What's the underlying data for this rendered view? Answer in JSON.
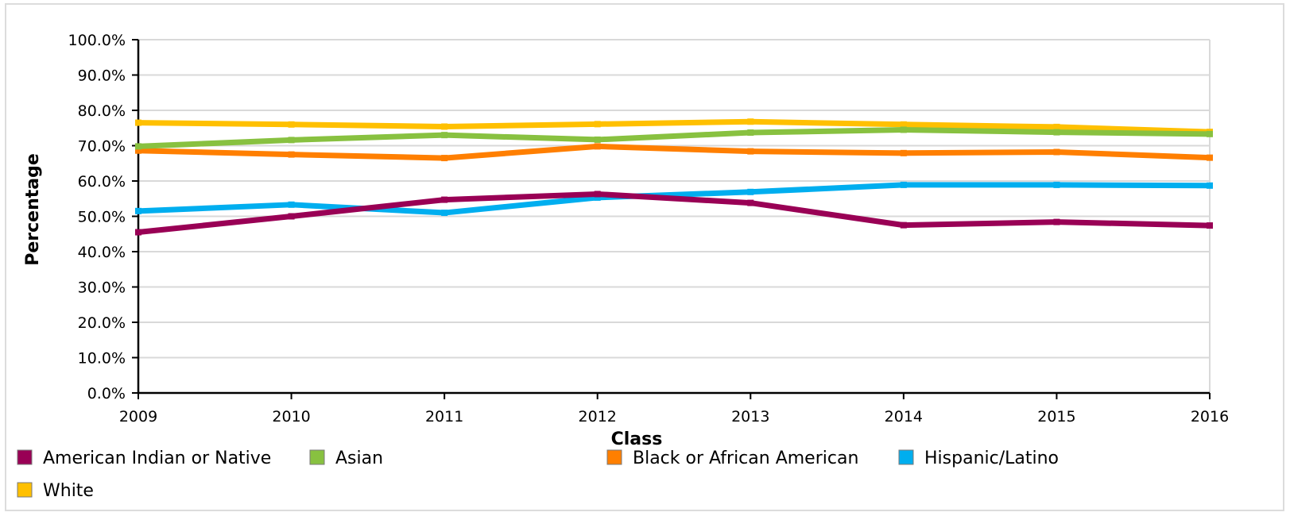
{
  "chart_data": {
    "type": "line",
    "title": "",
    "xlabel": "Class",
    "ylabel": "Percentage",
    "x": [
      "2009",
      "2010",
      "2011",
      "2012",
      "2013",
      "2014",
      "2015",
      "2016"
    ],
    "ylim": [
      0,
      100
    ],
    "y_ticks": [
      "0.0%",
      "10.0%",
      "20.0%",
      "30.0%",
      "40.0%",
      "50.0%",
      "60.0%",
      "70.0%",
      "80.0%",
      "90.0%",
      "100.0%"
    ],
    "grid": true,
    "legend_position": "bottom",
    "series": [
      {
        "name": "American Indian or Native",
        "color": "#990055",
        "values": [
          45.5,
          50.0,
          54.7,
          56.3,
          53.8,
          47.5,
          48.4,
          47.4
        ]
      },
      {
        "name": "Asian",
        "color": "#88c140",
        "values": [
          69.8,
          71.6,
          73.0,
          71.7,
          73.7,
          74.5,
          73.8,
          73.3
        ]
      },
      {
        "name": "Black or African American",
        "color": "#ff7f00",
        "values": [
          68.6,
          67.5,
          66.5,
          69.8,
          68.4,
          67.9,
          68.2,
          66.6
        ]
      },
      {
        "name": "Hispanic/Latino",
        "color": "#00aeef",
        "values": [
          51.5,
          53.3,
          51.0,
          55.3,
          56.9,
          58.9,
          58.9,
          58.7
        ]
      },
      {
        "name": "White",
        "color": "#ffc000",
        "values": [
          76.5,
          76.0,
          75.4,
          76.1,
          76.8,
          76.0,
          75.3,
          73.9
        ]
      }
    ]
  }
}
